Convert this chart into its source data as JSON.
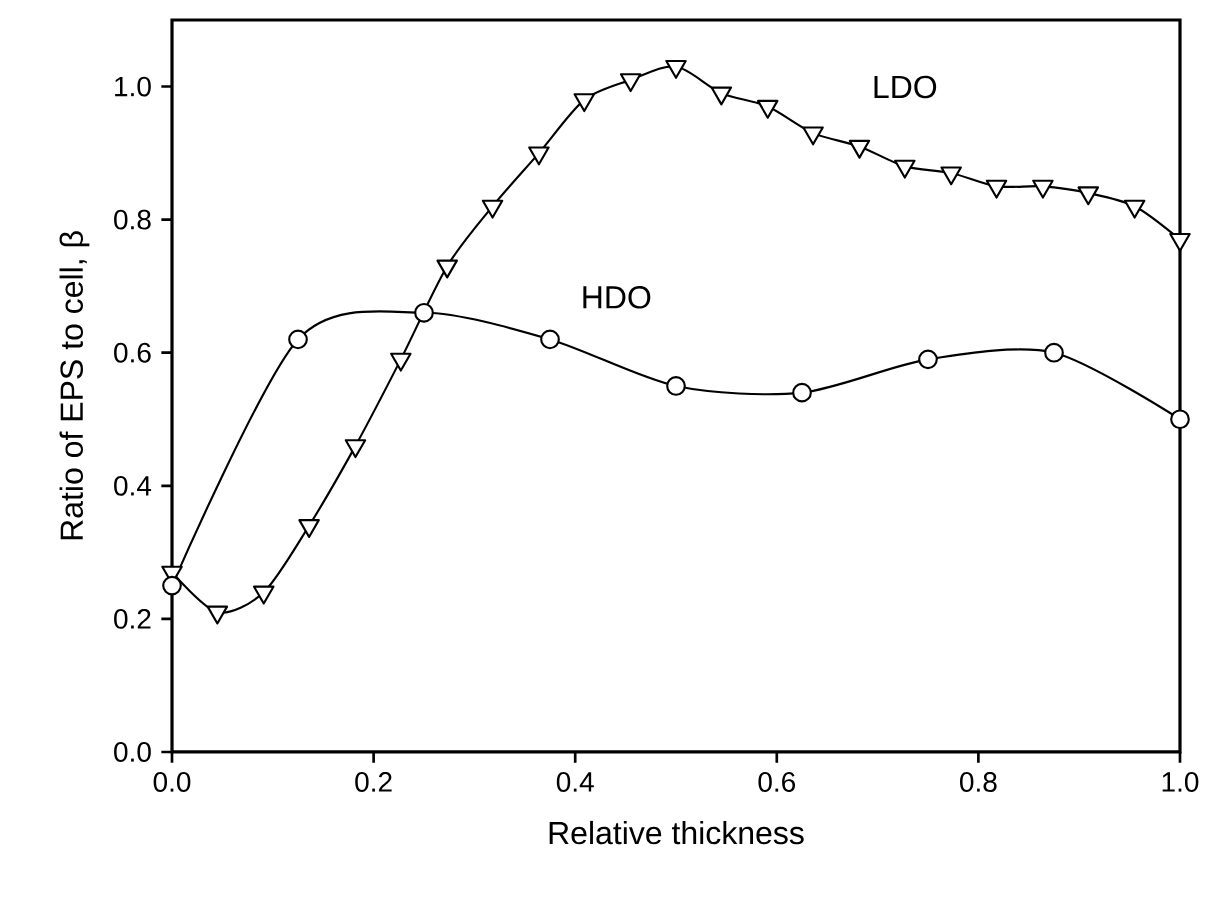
{
  "chart_data": {
    "type": "line",
    "xlabel": "Relative thickness",
    "ylabel": "Ratio of EPS to cell, β",
    "xlim": [
      0,
      1.0
    ],
    "ylim": [
      0,
      1.1
    ],
    "xticks": [
      {
        "value": 0,
        "label": "0.0"
      },
      {
        "value": 0.2,
        "label": "0.2"
      },
      {
        "value": 0.4,
        "label": "0.4"
      },
      {
        "value": 0.6,
        "label": "0.6"
      },
      {
        "value": 0.8,
        "label": "0.8"
      },
      {
        "value": 1.0,
        "label": "1.0"
      }
    ],
    "yticks": [
      {
        "value": 0,
        "label": "0.0"
      },
      {
        "value": 0.2,
        "label": "0.2"
      },
      {
        "value": 0.4,
        "label": "0.4"
      },
      {
        "value": 0.6,
        "label": "0.6"
      },
      {
        "value": 0.8,
        "label": "0.8"
      },
      {
        "value": 1.0,
        "label": "1.0"
      }
    ],
    "line_style": "solid",
    "series": [
      {
        "name": "LDO",
        "color": "#000000",
        "marker": "triangle",
        "x": [
          0,
          0.045,
          0.091,
          0.136,
          0.182,
          0.227,
          0.273,
          0.318,
          0.364,
          0.409,
          0.455,
          0.5,
          0.545,
          0.591,
          0.636,
          0.682,
          0.727,
          0.773,
          0.818,
          0.864,
          0.909,
          0.955,
          1.0
        ],
        "values": [
          0.27,
          0.21,
          0.24,
          0.34,
          0.46,
          0.59,
          0.73,
          0.82,
          0.9,
          0.98,
          1.01,
          1.03,
          0.99,
          0.97,
          0.93,
          0.91,
          0.88,
          0.87,
          0.85,
          0.85,
          0.84,
          0.82,
          0.77
        ]
      },
      {
        "name": "HDO",
        "color": "#000000",
        "marker": "circle",
        "x": [
          0,
          0.125,
          0.25,
          0.375,
          0.5,
          0.625,
          0.75,
          0.875,
          1.0
        ],
        "values": [
          0.25,
          0.62,
          0.66,
          0.62,
          0.55,
          0.54,
          0.59,
          0.6,
          0.5
        ]
      }
    ]
  }
}
